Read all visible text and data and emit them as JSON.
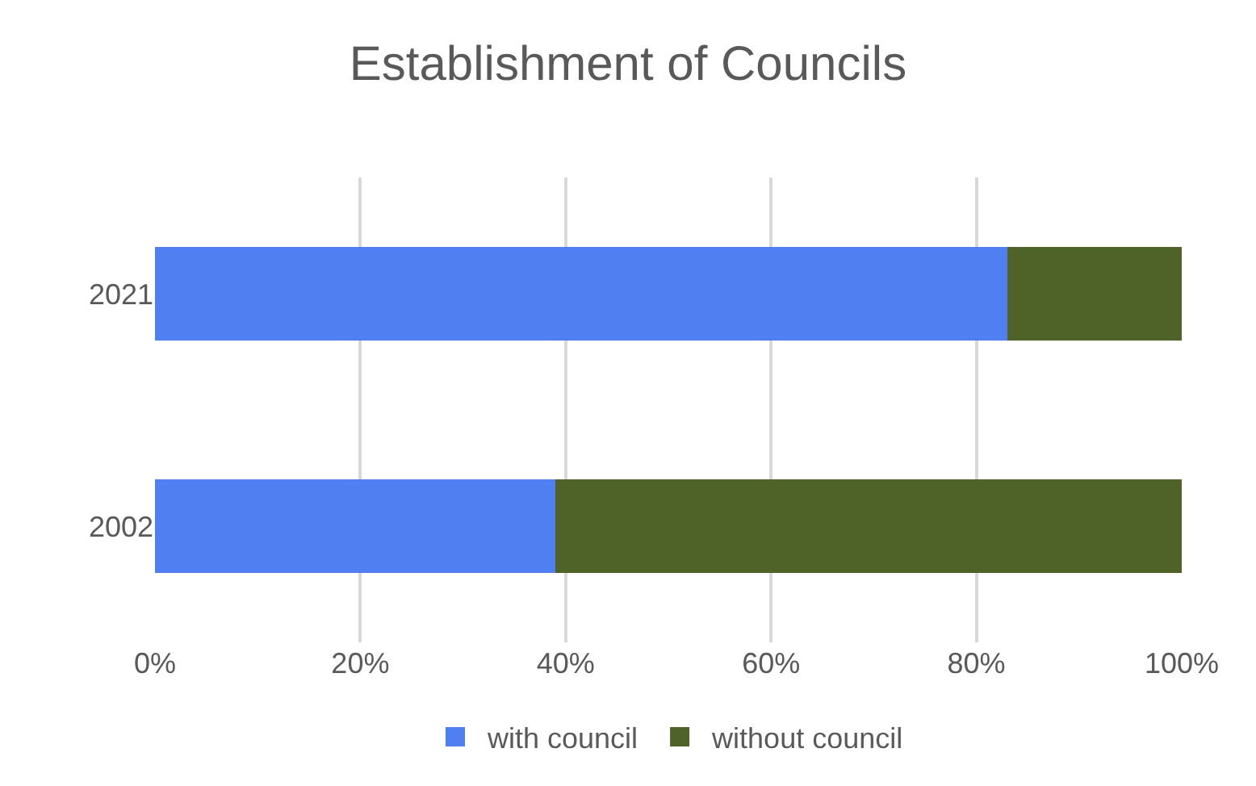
{
  "chart_data": {
    "type": "bar",
    "title": "Establishment of Councils",
    "orientation": "horizontal",
    "stacked": true,
    "categories": [
      "2021",
      "2002"
    ],
    "series": [
      {
        "name": "with council",
        "color": "#4f7ff0",
        "values": [
          83,
          39
        ]
      },
      {
        "name": "without council",
        "color": "#4f6228",
        "values": [
          17,
          61
        ]
      }
    ],
    "xlim": [
      0,
      100
    ],
    "xticks": [
      {
        "value": 0,
        "label": "0%"
      },
      {
        "value": 20,
        "label": "20%"
      },
      {
        "value": 40,
        "label": "40%"
      },
      {
        "value": 60,
        "label": "60%"
      },
      {
        "value": 80,
        "label": "80%"
      },
      {
        "value": 100,
        "label": "100%"
      }
    ],
    "grid": "x",
    "legend": "bottom"
  }
}
